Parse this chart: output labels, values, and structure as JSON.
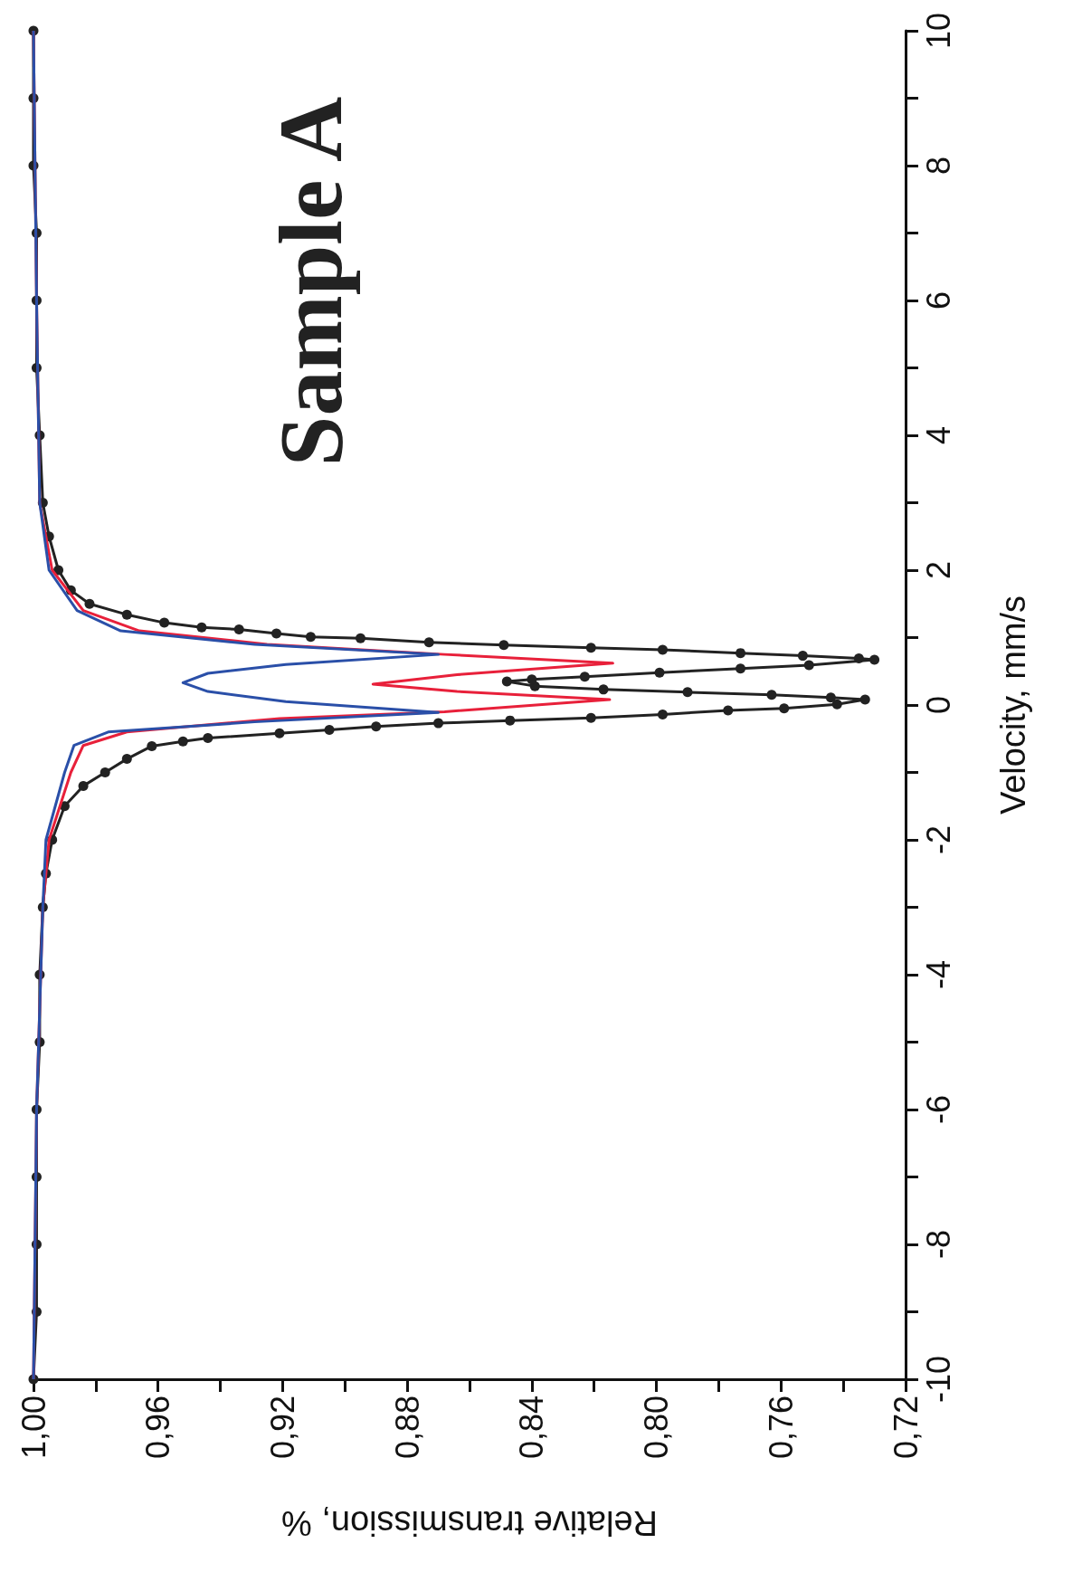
{
  "chart_data": {
    "type": "line",
    "xlabel": "Relative transmission, %",
    "ylabel": "Velocity, mm/s",
    "annotations": [
      "Sample A"
    ],
    "xlim": [
      1.0,
      0.72
    ],
    "xticks": [
      {
        "value": 0.72,
        "label": "0,72"
      },
      {
        "value": 0.74,
        "label": null
      },
      {
        "value": 0.76,
        "label": "0,76"
      },
      {
        "value": 0.78,
        "label": null
      },
      {
        "value": 0.8,
        "label": "0,80"
      },
      {
        "value": 0.82,
        "label": null
      },
      {
        "value": 0.84,
        "label": "0,84"
      },
      {
        "value": 0.86,
        "label": null
      },
      {
        "value": 0.88,
        "label": "0,88"
      },
      {
        "value": 0.9,
        "label": null
      },
      {
        "value": 0.92,
        "label": "0,92"
      },
      {
        "value": 0.94,
        "label": null
      },
      {
        "value": 0.96,
        "label": "0,96"
      },
      {
        "value": 0.98,
        "label": null
      },
      {
        "value": 1.0,
        "label": "1,00"
      }
    ],
    "ylim": [
      -10,
      10
    ],
    "yticks": [
      -10,
      {
        "value": -9,
        "label": null
      },
      -8,
      {
        "value": -7,
        "label": null
      },
      -6,
      {
        "value": -5,
        "label": null
      },
      -4,
      {
        "value": -3,
        "label": null
      },
      -2,
      {
        "value": -1,
        "label": null
      },
      0,
      {
        "value": 1,
        "label": null
      },
      2,
      {
        "value": 3,
        "label": null
      },
      4,
      {
        "value": 5,
        "label": null
      },
      6,
      {
        "value": 7,
        "label": null
      },
      8,
      {
        "value": 9,
        "label": null
      },
      10
    ],
    "line_style": "solid",
    "series": [
      {
        "color": "#222222",
        "marker": "circle",
        "values": [
          -10,
          -9,
          -8,
          -7,
          -6,
          -5,
          -4,
          -3,
          -2.5,
          -2,
          -1.5,
          -1.2,
          -1,
          -0.8,
          -0.61,
          -0.54,
          -0.49,
          -0.42,
          -0.37,
          -0.32,
          -0.27,
          -0.23,
          -0.19,
          -0.14,
          -0.08,
          -0.05,
          0.01,
          0.08,
          0.11,
          0.15,
          0.19,
          0.23,
          0.28,
          0.35,
          0.38,
          0.42,
          0.48,
          0.54,
          0.59,
          0.67,
          0.69,
          0.73,
          0.77,
          0.82,
          0.85,
          0.89,
          0.93,
          0.99,
          1.01,
          1.06,
          1.12,
          1.15,
          1.22,
          1.34,
          1.5,
          1.7,
          2,
          2.5,
          3,
          4,
          5,
          6,
          7,
          8,
          9,
          10
        ],
        "x": [
          1.0,
          0.999,
          0.999,
          0.999,
          0.999,
          0.998,
          0.998,
          0.997,
          0.996,
          0.994,
          0.99,
          0.984,
          0.977,
          0.97,
          0.962,
          0.952,
          0.944,
          0.921,
          0.905,
          0.89,
          0.87,
          0.847,
          0.821,
          0.798,
          0.777,
          0.759,
          0.742,
          0.733,
          0.744,
          0.763,
          0.79,
          0.817,
          0.839,
          0.848,
          0.84,
          0.823,
          0.799,
          0.773,
          0.751,
          0.73,
          0.735,
          0.753,
          0.773,
          0.798,
          0.821,
          0.849,
          0.873,
          0.895,
          0.911,
          0.922,
          0.934,
          0.946,
          0.958,
          0.97,
          0.982,
          0.988,
          0.992,
          0.995,
          0.997,
          0.998,
          0.999,
          0.999,
          0.999,
          1.0,
          1.0,
          1.0
        ]
      },
      {
        "color": "#e8203a",
        "marker": "none",
        "values": [
          -10,
          -6,
          -3,
          -2,
          -1,
          -0.6,
          -0.4,
          -0.2,
          -0.1,
          0.08,
          0.2,
          0.31,
          0.45,
          0.62,
          0.75,
          0.9,
          1.1,
          1.4,
          2,
          3,
          6,
          10
        ],
        "x": [
          1.0,
          0.999,
          0.997,
          0.995,
          0.988,
          0.984,
          0.97,
          0.921,
          0.868,
          0.815,
          0.864,
          0.891,
          0.864,
          0.814,
          0.868,
          0.925,
          0.966,
          0.984,
          0.994,
          0.998,
          0.999,
          1.0
        ]
      },
      {
        "color": "#2a4fa8",
        "marker": "none",
        "values": [
          -10,
          -6,
          -3,
          -2,
          -1,
          -0.6,
          -0.4,
          -0.25,
          -0.11,
          0.05,
          0.2,
          0.33,
          0.47,
          0.6,
          0.75,
          0.9,
          1.1,
          1.4,
          2,
          3,
          6,
          10
        ],
        "x": [
          1.0,
          0.999,
          0.997,
          0.996,
          0.99,
          0.987,
          0.976,
          0.929,
          0.87,
          0.919,
          0.944,
          0.952,
          0.944,
          0.919,
          0.87,
          0.929,
          0.972,
          0.986,
          0.995,
          0.998,
          0.999,
          1.0
        ]
      }
    ]
  }
}
